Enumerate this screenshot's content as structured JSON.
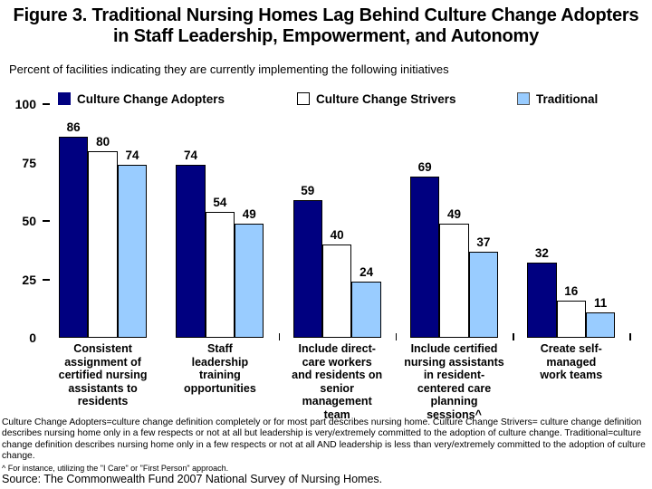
{
  "chart_data": {
    "type": "bar",
    "title": "Figure 3. Traditional Nursing Homes Lag Behind Culture Change Adopters in Staff Leadership, Empowerment, and Autonomy",
    "subtitle": "Percent of facilities indicating they are currently implementing the following initiatives",
    "categories": [
      "Consistent\nassignment of\ncertified nursing\nassistants to\nresidents",
      "Staff\nleadership\ntraining\nopportunities",
      "Include direct-\ncare workers\nand residents on\nsenior\nmanagement\nteam",
      "Include certified\nnursing assistants\nin resident-\ncentered care\nplanning\nsessions^",
      "Create self-\nmanaged\nwork teams"
    ],
    "series": [
      {
        "name": "Culture Change Adopters",
        "color": "#000080",
        "values": [
          86,
          74,
          59,
          69,
          32
        ]
      },
      {
        "name": "Culture Change Strivers",
        "color": "#FFFFFF",
        "values": [
          80,
          54,
          40,
          49,
          16
        ]
      },
      {
        "name": "Traditional",
        "color": "#99CCFF",
        "values": [
          74,
          49,
          24,
          37,
          11
        ]
      }
    ],
    "ylim": [
      0,
      100
    ],
    "yticks": [
      100,
      75,
      50,
      25,
      0
    ],
    "yticks_with_dash": [
      100,
      50,
      25
    ],
    "legend_position": "top",
    "grid": false,
    "bar_labels": true
  },
  "notes": {
    "definitions": "Culture Change Adopters=culture change definition completely or for most part describes nursing home. Culture Change Strivers= culture change definition describes nursing home only in a few respects or not at all but leadership is very/extremely committed to the adoption of culture change.  Traditional=culture change definition describes nursing home only in a few respects or not at all AND leadership is less than very/extremely committed to the adoption of culture change.",
    "caret_note": "^ For instance, utilizing the \"I Care\" or \"First Person\" approach.",
    "source": "Source: The Commonwealth Fund 2007 National Survey of Nursing Homes."
  }
}
